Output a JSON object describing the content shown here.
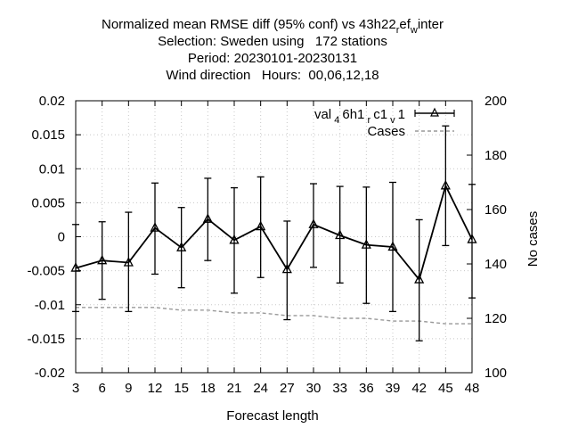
{
  "chart_data": {
    "type": "line",
    "title_lines": [
      "Normalized mean RMSE diff (95% conf) vs 43h22_ref_winter",
      "Selection: Sweden using   172 stations",
      "Period: 20230101-20230131",
      "Wind direction   Hours:  00,06,12,18"
    ],
    "xlabel": "Forecast length",
    "ylabel_right": "No cases",
    "x": [
      3,
      6,
      9,
      12,
      15,
      18,
      21,
      24,
      27,
      30,
      33,
      36,
      39,
      42,
      45,
      48
    ],
    "x_tick_labels": [
      "3",
      "6",
      "9",
      "12",
      "15",
      "18",
      "21",
      "24",
      "27",
      "30",
      "33",
      "36",
      "39",
      "42",
      "45",
      "48"
    ],
    "xlim": [
      3,
      48
    ],
    "ylim": [
      -0.02,
      0.02
    ],
    "y_tick_labels": [
      "0.02",
      "0.015",
      "0.01",
      "0.005",
      "0",
      "-0.005",
      "-0.01",
      "-0.015",
      "-0.02"
    ],
    "y_ticks": [
      0.02,
      0.015,
      0.01,
      0.005,
      0,
      -0.005,
      -0.01,
      -0.015,
      -0.02
    ],
    "y2lim": [
      100,
      200
    ],
    "y2_tick_labels": [
      "200",
      "180",
      "160",
      "140",
      "120",
      "100"
    ],
    "y2_ticks": [
      200,
      180,
      160,
      140,
      120,
      100
    ],
    "grid": true,
    "legend_position": "top-right",
    "series": [
      {
        "name": "val_46h1_rc1_v1",
        "display_name": "val 4 6h1 r c1 v 1",
        "color": "#000000",
        "marker": "triangle",
        "axis": "left",
        "values": [
          -0.0046,
          -0.0035,
          -0.0038,
          0.0013,
          -0.0016,
          0.0026,
          -0.0005,
          0.0015,
          -0.0048,
          0.0018,
          0.0002,
          -0.0012,
          -0.0015,
          -0.0063,
          0.0075,
          -0.0004
        ],
        "err_low": [
          -0.011,
          -0.0092,
          -0.011,
          -0.0055,
          -0.0075,
          -0.0035,
          -0.0083,
          -0.006,
          -0.0122,
          -0.0045,
          -0.0068,
          -0.0098,
          -0.011,
          -0.0153,
          -0.0013,
          -0.009
        ],
        "err_high": [
          0.0018,
          0.0022,
          0.0036,
          0.0079,
          0.0043,
          0.0086,
          0.0072,
          0.0088,
          0.0023,
          0.0078,
          0.0074,
          0.0073,
          0.008,
          0.0025,
          0.0163,
          0.0077
        ]
      },
      {
        "name": "Cases",
        "display_name": "Cases",
        "color": "#999999",
        "dash": true,
        "axis": "right",
        "values": [
          124,
          124,
          124,
          124,
          123,
          123,
          122,
          122,
          121,
          121,
          120,
          120,
          119,
          119,
          118,
          118
        ]
      }
    ]
  }
}
